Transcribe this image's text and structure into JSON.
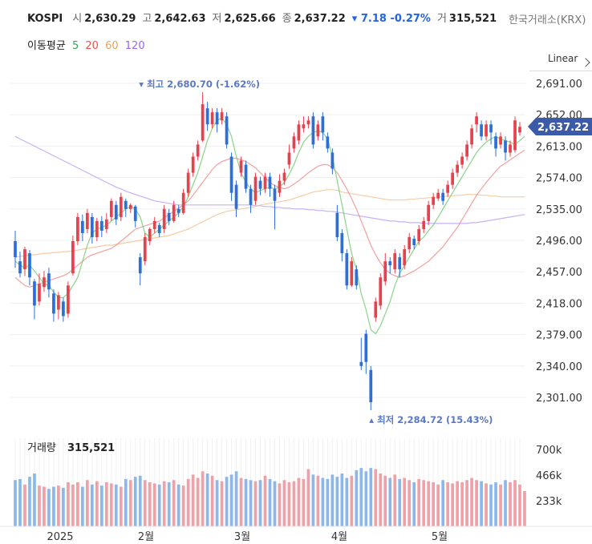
{
  "header": {
    "symbol": "KOSPI",
    "open_label": "시",
    "open": "2,630.29",
    "high_label": "고",
    "high": "2,642.63",
    "low_label": "저",
    "low": "2,625.66",
    "close_label": "종",
    "close": "2,637.22",
    "change": "7.18",
    "change_pct": "-0.27%",
    "volume_label": "거",
    "volume": "315,521",
    "exchange": "한국거래소(KRX)"
  },
  "ma_legend": {
    "label": "이동평균",
    "items": [
      {
        "period": "5",
        "color": "#2fa84f"
      },
      {
        "period": "20",
        "color": "#e8524a"
      },
      {
        "period": "60",
        "color": "#f0a050"
      },
      {
        "period": "120",
        "color": "#9966ee"
      }
    ]
  },
  "scale_mode": "Linear",
  "chart_data": {
    "type": "candlestick",
    "y_ticks": [
      "2,691.00",
      "2,652.00",
      "2,613.00",
      "2,574.00",
      "2,535.00",
      "2,496.00",
      "2,457.00",
      "2,418.00",
      "2,379.00",
      "2,340.00",
      "2,301.00"
    ],
    "ylim": [
      2270,
      2700
    ],
    "x_ticks": [
      "2025",
      "2월",
      "3월",
      "4월",
      "5월"
    ],
    "last_price_label": "2,637.22",
    "max_label": "최고 2,680.70 (-1.62%)",
    "min_label": "최저 2,284.72 (15.43%)",
    "up_color": "#e8414d",
    "down_color": "#2a6fdb",
    "candles": [
      {
        "o": 2495,
        "c": 2475,
        "h": 2508,
        "l": 2462
      },
      {
        "o": 2470,
        "c": 2455,
        "h": 2482,
        "l": 2450
      },
      {
        "o": 2460,
        "c": 2485,
        "h": 2488,
        "l": 2452
      },
      {
        "o": 2480,
        "c": 2450,
        "h": 2484,
        "l": 2440
      },
      {
        "o": 2445,
        "c": 2415,
        "h": 2448,
        "l": 2398
      },
      {
        "o": 2420,
        "c": 2442,
        "h": 2455,
        "l": 2415
      },
      {
        "o": 2438,
        "c": 2450,
        "h": 2458,
        "l": 2432
      },
      {
        "o": 2455,
        "c": 2435,
        "h": 2462,
        "l": 2425
      },
      {
        "o": 2430,
        "c": 2405,
        "h": 2435,
        "l": 2395
      },
      {
        "o": 2410,
        "c": 2428,
        "h": 2432,
        "l": 2398
      },
      {
        "o": 2420,
        "c": 2402,
        "h": 2425,
        "l": 2395
      },
      {
        "o": 2405,
        "c": 2440,
        "h": 2445,
        "l": 2400
      },
      {
        "o": 2455,
        "c": 2495,
        "h": 2502,
        "l": 2452
      },
      {
        "o": 2495,
        "c": 2525,
        "h": 2530,
        "l": 2490
      },
      {
        "o": 2520,
        "c": 2505,
        "h": 2528,
        "l": 2495
      },
      {
        "o": 2510,
        "c": 2530,
        "h": 2535,
        "l": 2505
      },
      {
        "o": 2525,
        "c": 2500,
        "h": 2530,
        "l": 2492
      },
      {
        "o": 2500,
        "c": 2520,
        "h": 2524,
        "l": 2495
      },
      {
        "o": 2520,
        "c": 2508,
        "h": 2526,
        "l": 2500
      },
      {
        "o": 2510,
        "c": 2522,
        "h": 2530,
        "l": 2505
      },
      {
        "o": 2525,
        "c": 2545,
        "h": 2548,
        "l": 2520
      },
      {
        "o": 2540,
        "c": 2522,
        "h": 2545,
        "l": 2515
      },
      {
        "o": 2525,
        "c": 2550,
        "h": 2555,
        "l": 2520
      },
      {
        "o": 2545,
        "c": 2535,
        "h": 2548,
        "l": 2525
      },
      {
        "o": 2535,
        "c": 2540,
        "h": 2542,
        "l": 2530
      },
      {
        "o": 2538,
        "c": 2520,
        "h": 2540,
        "l": 2512
      },
      {
        "o": 2475,
        "c": 2455,
        "h": 2480,
        "l": 2440
      },
      {
        "o": 2470,
        "c": 2500,
        "h": 2505,
        "l": 2465
      },
      {
        "o": 2495,
        "c": 2510,
        "h": 2512,
        "l": 2490
      },
      {
        "o": 2510,
        "c": 2520,
        "h": 2525,
        "l": 2505
      },
      {
        "o": 2515,
        "c": 2505,
        "h": 2518,
        "l": 2500
      },
      {
        "o": 2510,
        "c": 2535,
        "h": 2540,
        "l": 2505
      },
      {
        "o": 2530,
        "c": 2520,
        "h": 2535,
        "l": 2515
      },
      {
        "o": 2520,
        "c": 2540,
        "h": 2545,
        "l": 2518
      },
      {
        "o": 2535,
        "c": 2530,
        "h": 2540,
        "l": 2525
      },
      {
        "o": 2530,
        "c": 2555,
        "h": 2560,
        "l": 2528
      },
      {
        "o": 2555,
        "c": 2580,
        "h": 2585,
        "l": 2550
      },
      {
        "o": 2580,
        "c": 2600,
        "h": 2605,
        "l": 2575
      },
      {
        "o": 2600,
        "c": 2615,
        "h": 2620,
        "l": 2595
      },
      {
        "o": 2620,
        "c": 2665,
        "h": 2680,
        "l": 2618
      },
      {
        "o": 2660,
        "c": 2640,
        "h": 2668,
        "l": 2632
      },
      {
        "o": 2640,
        "c": 2655,
        "h": 2660,
        "l": 2635
      },
      {
        "o": 2655,
        "c": 2640,
        "h": 2660,
        "l": 2630
      },
      {
        "o": 2645,
        "c": 2655,
        "h": 2660,
        "l": 2640
      },
      {
        "o": 2650,
        "c": 2615,
        "h": 2655,
        "l": 2610
      },
      {
        "o": 2600,
        "c": 2555,
        "h": 2605,
        "l": 2545
      },
      {
        "o": 2565,
        "c": 2535,
        "h": 2570,
        "l": 2525
      },
      {
        "o": 2580,
        "c": 2595,
        "h": 2600,
        "l": 2575
      },
      {
        "o": 2590,
        "c": 2560,
        "h": 2595,
        "l": 2555
      },
      {
        "o": 2560,
        "c": 2540,
        "h": 2565,
        "l": 2530
      },
      {
        "o": 2545,
        "c": 2575,
        "h": 2580,
        "l": 2540
      },
      {
        "o": 2570,
        "c": 2560,
        "h": 2575,
        "l": 2552
      },
      {
        "o": 2560,
        "c": 2575,
        "h": 2580,
        "l": 2555
      },
      {
        "o": 2575,
        "c": 2560,
        "h": 2580,
        "l": 2550
      },
      {
        "o": 2560,
        "c": 2545,
        "h": 2565,
        "l": 2510
      },
      {
        "o": 2555,
        "c": 2570,
        "h": 2578,
        "l": 2550
      },
      {
        "o": 2570,
        "c": 2580,
        "h": 2585,
        "l": 2565
      },
      {
        "o": 2590,
        "c": 2605,
        "h": 2615,
        "l": 2585
      },
      {
        "o": 2610,
        "c": 2625,
        "h": 2630,
        "l": 2605
      },
      {
        "o": 2620,
        "c": 2640,
        "h": 2645,
        "l": 2615
      },
      {
        "o": 2635,
        "c": 2640,
        "h": 2650,
        "l": 2630
      },
      {
        "o": 2640,
        "c": 2645,
        "h": 2650,
        "l": 2635
      },
      {
        "o": 2650,
        "c": 2615,
        "h": 2655,
        "l": 2610
      },
      {
        "o": 2625,
        "c": 2640,
        "h": 2645,
        "l": 2620
      },
      {
        "o": 2650,
        "c": 2630,
        "h": 2655,
        "l": 2620
      },
      {
        "o": 2625,
        "c": 2610,
        "h": 2630,
        "l": 2605
      },
      {
        "o": 2605,
        "c": 2585,
        "h": 2610,
        "l": 2578
      },
      {
        "o": 2530,
        "c": 2500,
        "h": 2540,
        "l": 2495
      },
      {
        "o": 2505,
        "c": 2480,
        "h": 2510,
        "l": 2470
      },
      {
        "o": 2480,
        "c": 2440,
        "h": 2485,
        "l": 2435
      },
      {
        "o": 2440,
        "c": 2470,
        "h": 2475,
        "l": 2438
      },
      {
        "o": 2460,
        "c": 2440,
        "h": 2465,
        "l": 2435
      },
      {
        "o": 2345,
        "c": 2340,
        "h": 2375,
        "l": 2335
      },
      {
        "o": 2380,
        "c": 2345,
        "h": 2385,
        "l": 2330
      },
      {
        "o": 2335,
        "c": 2295,
        "h": 2340,
        "l": 2285
      },
      {
        "o": 2400,
        "c": 2420,
        "h": 2425,
        "l": 2395
      },
      {
        "o": 2415,
        "c": 2450,
        "h": 2455,
        "l": 2410
      },
      {
        "o": 2445,
        "c": 2470,
        "h": 2480,
        "l": 2440
      },
      {
        "o": 2470,
        "c": 2465,
        "h": 2475,
        "l": 2455
      },
      {
        "o": 2460,
        "c": 2480,
        "h": 2485,
        "l": 2455
      },
      {
        "o": 2475,
        "c": 2460,
        "h": 2480,
        "l": 2450
      },
      {
        "o": 2465,
        "c": 2485,
        "h": 2490,
        "l": 2460
      },
      {
        "o": 2485,
        "c": 2500,
        "h": 2505,
        "l": 2480
      },
      {
        "o": 2498,
        "c": 2490,
        "h": 2502,
        "l": 2485
      },
      {
        "o": 2495,
        "c": 2510,
        "h": 2515,
        "l": 2490
      },
      {
        "o": 2510,
        "c": 2520,
        "h": 2525,
        "l": 2505
      },
      {
        "o": 2520,
        "c": 2540,
        "h": 2545,
        "l": 2515
      },
      {
        "o": 2540,
        "c": 2550,
        "h": 2555,
        "l": 2535
      },
      {
        "o": 2548,
        "c": 2555,
        "h": 2560,
        "l": 2545
      },
      {
        "o": 2555,
        "c": 2545,
        "h": 2560,
        "l": 2540
      },
      {
        "o": 2555,
        "c": 2565,
        "h": 2570,
        "l": 2550
      },
      {
        "o": 2565,
        "c": 2580,
        "h": 2585,
        "l": 2560
      },
      {
        "o": 2580,
        "c": 2590,
        "h": 2595,
        "l": 2575
      },
      {
        "o": 2590,
        "c": 2600,
        "h": 2605,
        "l": 2585
      },
      {
        "o": 2600,
        "c": 2615,
        "h": 2620,
        "l": 2595
      },
      {
        "o": 2615,
        "c": 2635,
        "h": 2640,
        "l": 2610
      },
      {
        "o": 2640,
        "c": 2650,
        "h": 2655,
        "l": 2630
      },
      {
        "o": 2640,
        "c": 2625,
        "h": 2645,
        "l": 2620
      },
      {
        "o": 2625,
        "c": 2640,
        "h": 2645,
        "l": 2620
      },
      {
        "o": 2640,
        "c": 2630,
        "h": 2645,
        "l": 2615
      },
      {
        "o": 2625,
        "c": 2610,
        "h": 2630,
        "l": 2600
      },
      {
        "o": 2615,
        "c": 2625,
        "h": 2630,
        "l": 2610
      },
      {
        "o": 2620,
        "c": 2605,
        "h": 2625,
        "l": 2595
      },
      {
        "o": 2605,
        "c": 2615,
        "h": 2620,
        "l": 2600
      },
      {
        "o": 2608,
        "c": 2645,
        "h": 2650,
        "l": 2605
      },
      {
        "o": 2630,
        "c": 2637,
        "h": 2643,
        "l": 2626
      }
    ],
    "ma5": [
      2470,
      2465,
      2462,
      2465,
      2458,
      2450,
      2442,
      2440,
      2432,
      2425,
      2425,
      2430,
      2440,
      2450,
      2470,
      2490,
      2505,
      2510,
      2512,
      2515,
      2520,
      2525,
      2530,
      2535,
      2538,
      2535,
      2525,
      2505,
      2500,
      2505,
      2510,
      2515,
      2520,
      2525,
      2530,
      2538,
      2550,
      2565,
      2580,
      2600,
      2620,
      2635,
      2645,
      2648,
      2640,
      2625,
      2600,
      2580,
      2568,
      2560,
      2555,
      2558,
      2560,
      2562,
      2560,
      2562,
      2568,
      2578,
      2590,
      2605,
      2618,
      2625,
      2630,
      2632,
      2630,
      2622,
      2600,
      2570,
      2540,
      2510,
      2480,
      2460,
      2430,
      2410,
      2385,
      2380,
      2390,
      2405,
      2420,
      2440,
      2455,
      2465,
      2475,
      2485,
      2495,
      2500,
      2508,
      2515,
      2525,
      2535,
      2545,
      2555,
      2565,
      2575,
      2585,
      2595,
      2605,
      2612,
      2618,
      2622,
      2625,
      2622,
      2620,
      2618,
      2615,
      2620,
      2625
    ],
    "ma20": [
      2450,
      2445,
      2440,
      2438,
      2440,
      2442,
      2444,
      2446,
      2448,
      2450,
      2452,
      2455,
      2460,
      2465,
      2470,
      2475,
      2478,
      2480,
      2482,
      2484,
      2486,
      2490,
      2495,
      2500,
      2505,
      2510,
      2512,
      2514,
      2516,
      2518,
      2520,
      2524,
      2528,
      2532,
      2536,
      2540,
      2545,
      2552,
      2560,
      2568,
      2576,
      2584,
      2590,
      2594,
      2596,
      2598,
      2598,
      2596,
      2594,
      2590,
      2586,
      2580,
      2574,
      2568,
      2564,
      2562,
      2560,
      2562,
      2566,
      2570,
      2575,
      2580,
      2584,
      2588,
      2590,
      2590,
      2586,
      2580,
      2570,
      2560,
      2548,
      2535,
      2520,
      2505,
      2490,
      2478,
      2468,
      2460,
      2455,
      2452,
      2450,
      2452,
      2455,
      2458,
      2462,
      2466,
      2470,
      2476,
      2482,
      2488,
      2496,
      2504,
      2512,
      2522,
      2532,
      2542,
      2552,
      2560,
      2568,
      2575,
      2582,
      2588,
      2592,
      2596,
      2600,
      2604,
      2608
    ],
    "ma60": [
      2475,
      2476,
      2477,
      2478,
      2478,
      2479,
      2480,
      2480,
      2481,
      2481,
      2482,
      2482,
      2483,
      2484,
      2485,
      2486,
      2487,
      2488,
      2489,
      2490,
      2490,
      2491,
      2492,
      2493,
      2494,
      2495,
      2496,
      2497,
      2498,
      2499,
      2500,
      2501,
      2502,
      2504,
      2506,
      2508,
      2510,
      2513,
      2516,
      2519,
      2522,
      2525,
      2528,
      2530,
      2532,
      2533,
      2534,
      2535,
      2536,
      2537,
      2538,
      2540,
      2541,
      2542,
      2543,
      2544,
      2545,
      2546,
      2548,
      2550,
      2552,
      2554,
      2556,
      2557,
      2558,
      2559,
      2559,
      2558,
      2556,
      2555,
      2554,
      2553,
      2552,
      2551,
      2550,
      2549,
      2548,
      2547,
      2546,
      2546,
      2546,
      2546,
      2547,
      2547,
      2548,
      2548,
      2549,
      2549,
      2550,
      2550,
      2551,
      2551,
      2552,
      2552,
      2553,
      2553,
      2553,
      2552,
      2552,
      2551,
      2551,
      2550,
      2550,
      2550,
      2550,
      2550,
      2550
    ],
    "ma120": [
      2625,
      2622,
      2619,
      2616,
      2613,
      2610,
      2607,
      2604,
      2601,
      2598,
      2595,
      2592,
      2589,
      2586,
      2583,
      2580,
      2577,
      2574,
      2571,
      2568,
      2565,
      2562,
      2560,
      2557,
      2555,
      2553,
      2551,
      2549,
      2547,
      2545,
      2544,
      2543,
      2542,
      2541,
      2540,
      2540,
      2540,
      2540,
      2540,
      2540,
      2540,
      2540,
      2540,
      2540,
      2540,
      2540,
      2540,
      2540,
      2540,
      2540,
      2539,
      2539,
      2538,
      2538,
      2537,
      2537,
      2536,
      2536,
      2535,
      2535,
      2535,
      2534,
      2534,
      2533,
      2533,
      2532,
      2532,
      2531,
      2530,
      2529,
      2528,
      2527,
      2526,
      2525,
      2524,
      2523,
      2522,
      2521,
      2520,
      2520,
      2519,
      2519,
      2518,
      2518,
      2518,
      2517,
      2517,
      2517,
      2517,
      2517,
      2517,
      2517,
      2517,
      2517,
      2517,
      2518,
      2518,
      2519,
      2520,
      2521,
      2522,
      2523,
      2524,
      2525,
      2526,
      2527,
      2528
    ],
    "volume": {
      "label": "거래량",
      "value": "315,521",
      "ticks": [
        "700k",
        "466k",
        "233k"
      ],
      "max": 800,
      "bars": [
        420,
        430,
        380,
        450,
        480,
        370,
        360,
        340,
        360,
        370,
        350,
        400,
        380,
        400,
        360,
        420,
        380,
        410,
        370,
        400,
        390,
        380,
        360,
        430,
        420,
        450,
        460,
        420,
        400,
        390,
        380,
        410,
        400,
        420,
        380,
        370,
        430,
        470,
        440,
        500,
        480,
        460,
        420,
        410,
        450,
        470,
        500,
        440,
        430,
        420,
        410,
        420,
        460,
        430,
        410,
        390,
        420,
        400,
        410,
        440,
        430,
        520,
        470,
        460,
        440,
        430,
        470,
        450,
        480,
        440,
        460,
        510,
        530,
        500,
        530,
        520,
        480,
        460,
        440,
        470,
        430,
        440,
        420,
        400,
        430,
        420,
        410,
        400,
        380,
        420,
        400,
        390,
        410,
        400,
        420,
        440,
        420,
        410,
        390,
        380,
        400,
        380,
        420,
        400,
        420,
        380,
        320
      ],
      "colors_up": "#f0a0a6",
      "colors_down": "#8ab8ee"
    }
  }
}
